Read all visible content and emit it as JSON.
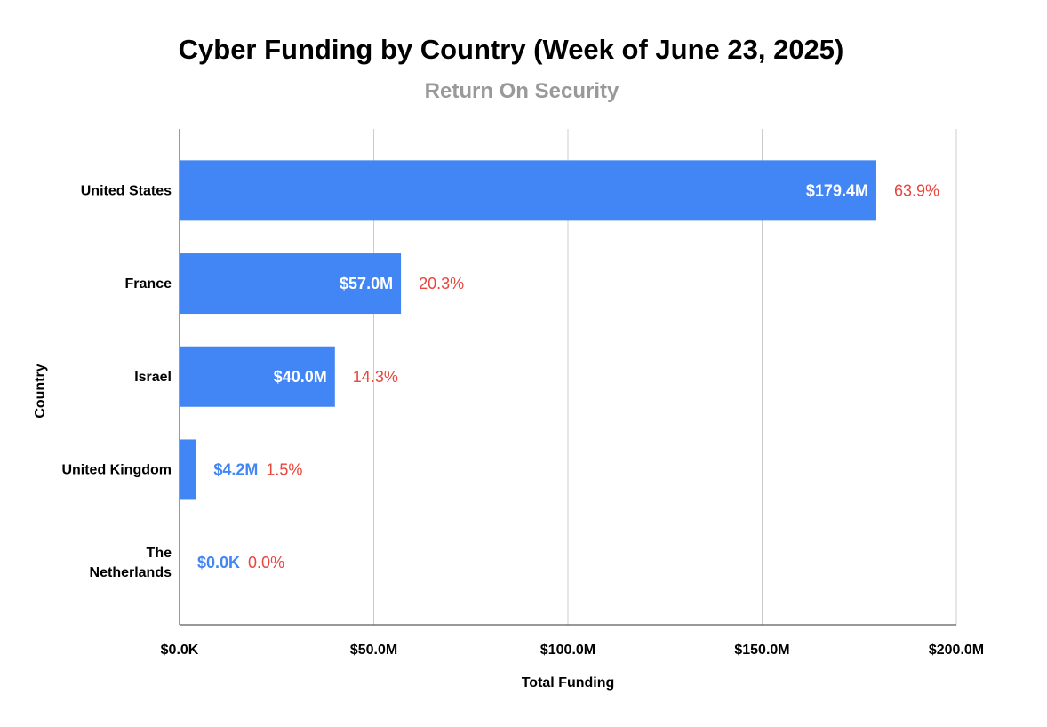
{
  "chart_data": {
    "type": "bar",
    "orientation": "horizontal",
    "title": "Cyber Funding by Country (Week of June 23, 2025)",
    "subtitle": "Return On Security",
    "xlabel": "Total Funding",
    "ylabel": "Country",
    "categories": [
      "United States",
      "France",
      "Israel",
      "United Kingdom",
      "The Netherlands"
    ],
    "category_lines": [
      [
        "United States"
      ],
      [
        "France"
      ],
      [
        "Israel"
      ],
      [
        "United Kingdom"
      ],
      [
        "The",
        "Netherlands"
      ]
    ],
    "values": [
      179.4,
      57.0,
      40.0,
      4.2,
      0.0
    ],
    "value_labels": [
      "$179.4M",
      "$57.0M",
      "$40.0M",
      "$4.2M",
      "$0.0K"
    ],
    "percent_labels": [
      "63.9%",
      "20.3%",
      "14.3%",
      "1.5%",
      "0.0%"
    ],
    "value_unit": "USD millions",
    "xlim": [
      0,
      200
    ],
    "x_ticks": [
      0,
      50,
      100,
      150,
      200
    ],
    "x_tick_labels": [
      "$0.0K",
      "$50.0M",
      "$100.0M",
      "$150.0M",
      "$200.0M"
    ],
    "grid": "vertical",
    "legend": "none",
    "colors": {
      "bar": "#4285f4",
      "value_label_outside": "#4285f4",
      "value_label_inside": "#ffffff",
      "percent_label": "#e8453c",
      "grid": "#cccccc",
      "axis": "#333333"
    }
  }
}
